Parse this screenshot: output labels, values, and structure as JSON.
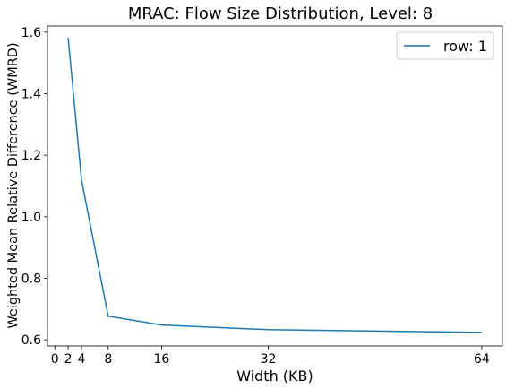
{
  "chart_data": {
    "type": "line",
    "title": "MRAC: Flow Size Distribution, Level: 8",
    "xlabel": "Width (KB)",
    "ylabel": "Weighted Mean Relative Difference (WMRD)",
    "xlim": [
      -1.1,
      67.1
    ],
    "ylim": [
      0.58,
      1.62
    ],
    "x_ticks": [
      0,
      2,
      4,
      8,
      16,
      32,
      64
    ],
    "x_tick_labels": [
      "0",
      "2",
      "4",
      "8",
      "16",
      "32",
      "64"
    ],
    "y_ticks": [
      0.6,
      0.8,
      1.0,
      1.2,
      1.4,
      1.6
    ],
    "y_tick_labels": [
      "0.6",
      "0.8",
      "1.0",
      "1.2",
      "1.4",
      "1.6"
    ],
    "grid": false,
    "legend_position": "top-right",
    "series": [
      {
        "name": "row: 1",
        "color": "#1f77b4",
        "x": [
          2,
          4,
          8,
          16,
          32,
          64
        ],
        "y": [
          1.582,
          1.12,
          0.677,
          0.648,
          0.633,
          0.624
        ]
      }
    ]
  }
}
